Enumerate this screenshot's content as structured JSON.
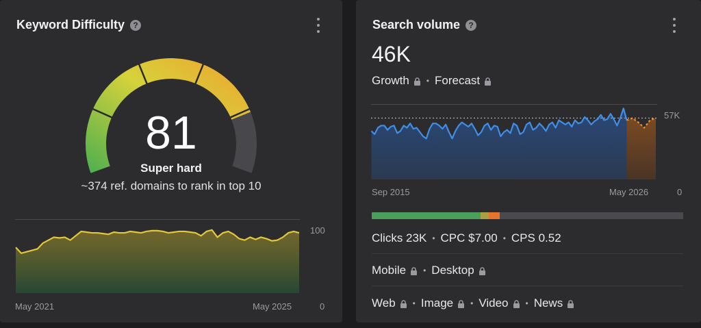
{
  "keyword_difficulty": {
    "title": "Keyword Difficulty",
    "help_icon": "?",
    "score": "81",
    "label": "Super hard",
    "subtitle": "~374 ref. domains to rank in top 10",
    "trend": {
      "y_max_label": "100",
      "y_min_label": "0",
      "start_label": "May 2021",
      "end_label": "May 2025",
      "ylim": [
        0,
        100
      ],
      "values": [
        62,
        54,
        56,
        58,
        60,
        68,
        72,
        76,
        75,
        76,
        72,
        78,
        84,
        83,
        82,
        82,
        81,
        80,
        83,
        82,
        82,
        84,
        83,
        82,
        84,
        85,
        85,
        84,
        82,
        83,
        84,
        84,
        83,
        82,
        78,
        84,
        86,
        76,
        82,
        84,
        80,
        74,
        72,
        76,
        73,
        76,
        74,
        71,
        72,
        76,
        82,
        84,
        82
      ]
    },
    "colors": {
      "gauge_track": "#48484c",
      "green": "#4caf50",
      "yellow": "#d6d23a",
      "orange": "#f0a030",
      "line": "#e2c83c"
    }
  },
  "search_volume": {
    "title": "Search volume",
    "help_icon": "?",
    "volume": "46K",
    "growth_label": "Growth",
    "forecast_label": "Forecast",
    "chart": {
      "max_label": "57K",
      "min_label": "0",
      "start_label": "Sep 2015",
      "end_label": "May 2026",
      "ylim": [
        0,
        70
      ],
      "reference_value": 57,
      "values": [
        45,
        42,
        48,
        50,
        50,
        46,
        49,
        50,
        43,
        45,
        50,
        48,
        52,
        47,
        48,
        44,
        40,
        38,
        47,
        52,
        52,
        50,
        47,
        51,
        44,
        38,
        45,
        50,
        53,
        51,
        49,
        52,
        47,
        41,
        44,
        50,
        52,
        46,
        50,
        49,
        40,
        44,
        46,
        43,
        52,
        50,
        42,
        44,
        51,
        53,
        46,
        48,
        52,
        49,
        45,
        51,
        53,
        48,
        55,
        53,
        51,
        53,
        49,
        55,
        52,
        53,
        58,
        55,
        51,
        54,
        56,
        60,
        55,
        56,
        61,
        56,
        50,
        57,
        66,
        55
      ],
      "forecast_values": [
        55,
        57,
        53,
        48,
        55,
        57
      ],
      "colors": {
        "line": "#3f8fe8",
        "forecast": "#f0902c"
      }
    },
    "distribution": {
      "segments": [
        {
          "name": "clicks",
          "fraction": 0.35,
          "color": "#4aa05a"
        },
        {
          "name": "mid",
          "fraction": 0.025,
          "color": "#a8a044"
        },
        {
          "name": "orange",
          "fraction": 0.035,
          "color": "#e8742c"
        }
      ]
    },
    "clicks_label": "Clicks 23K",
    "cpc_label": "CPC $7.00",
    "cps_label": "CPS 0.52",
    "mobile_label": "Mobile",
    "desktop_label": "Desktop",
    "web_label": "Web",
    "image_label": "Image",
    "video_label": "Video",
    "news_label": "News"
  }
}
